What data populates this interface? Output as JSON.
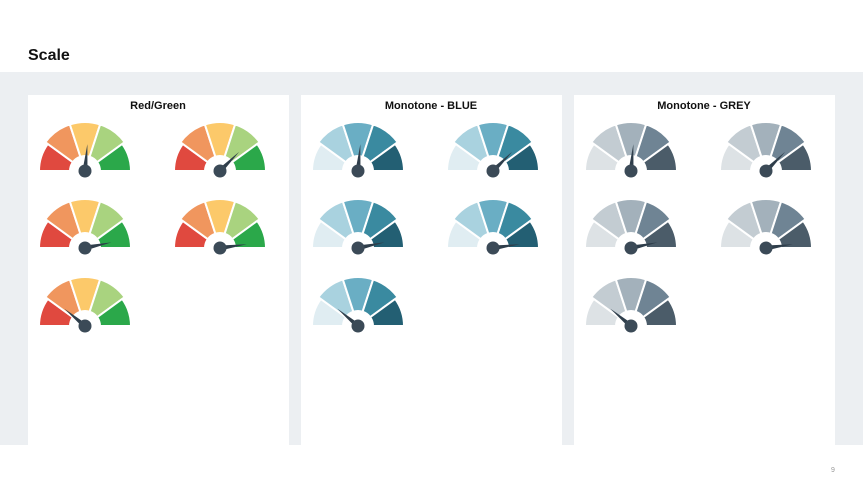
{
  "title": "Scale",
  "page_number": "9",
  "panels": [
    {
      "title": "Red/Green"
    },
    {
      "title": "Monotone - BLUE"
    },
    {
      "title": "Monotone - GREY"
    }
  ]
}
